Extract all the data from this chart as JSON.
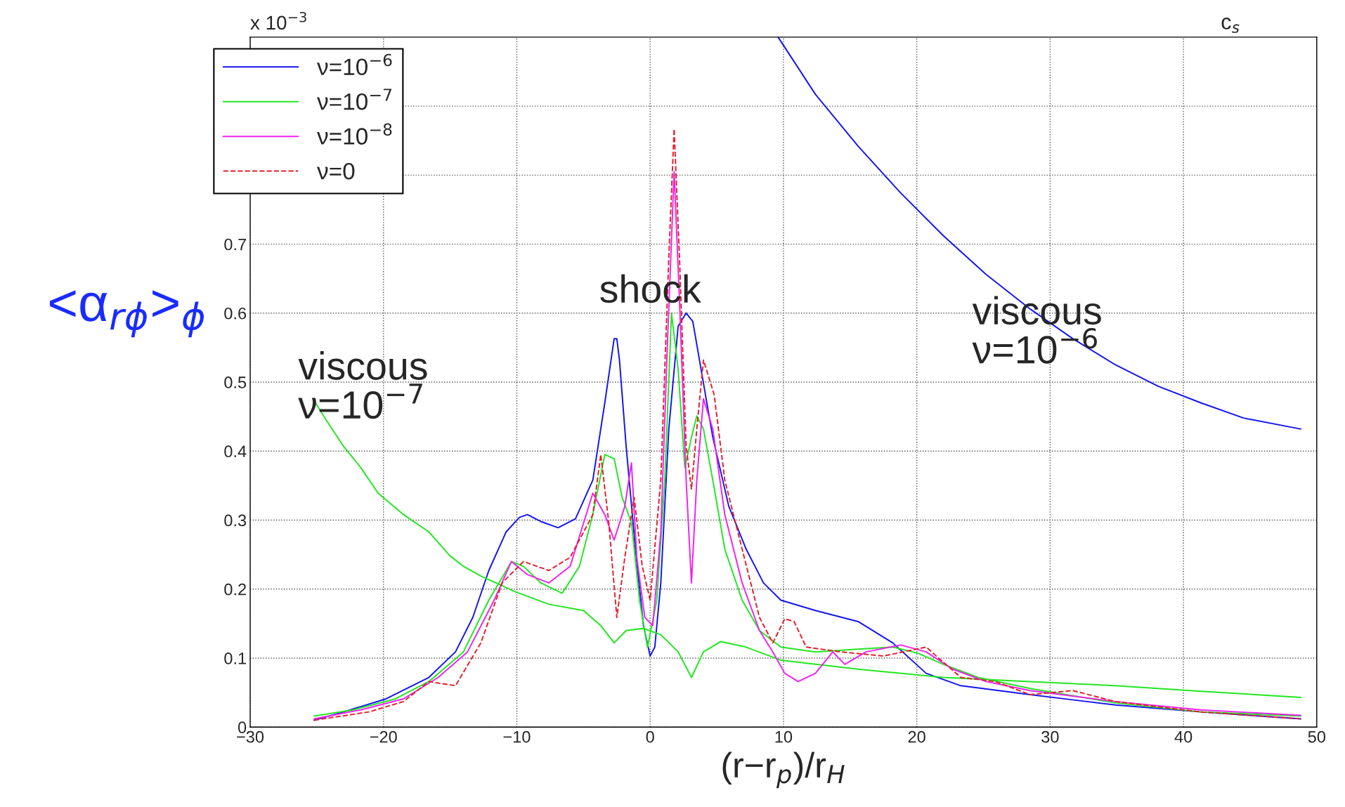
{
  "chart_data": {
    "type": "line",
    "xlabel": "(r−r$_{p}$)/r$_{H}$",
    "ylabel": "<α$_{rϕ}$>$_{ϕ}$",
    "xlim": [
      -30,
      50
    ],
    "xticks": [
      {
        "value": -30,
        "label": "−30"
      },
      {
        "value": -20,
        "label": "−20"
      },
      {
        "value": -10,
        "label": "−10"
      },
      0,
      10,
      20,
      30,
      40,
      50
    ],
    "ylim": [
      0,
      1.0
    ],
    "yticks": [
      0,
      0.1,
      0.2,
      0.3,
      0.4,
      0.5,
      0.6,
      0.7,
      {
        "value": 0.8,
        "label": null
      },
      {
        "value": 0.9,
        "label": null
      }
    ],
    "grid": true,
    "legend": "top left",
    "annotations": [
      "x 10$^{−3}$",
      "c$_{s}$",
      "shock",
      "viscous\nν=10$^{−7}$",
      "viscous\nν=10$^{−6}$"
    ],
    "series": [
      {
        "name": "ν=10$^{−6}$",
        "color": "#1414ee",
        "line_style": "solid",
        "x": [
          -25.2,
          -23.0,
          -19.8,
          -16.6,
          -14.6,
          -13.3,
          -12.1,
          -10.8,
          -9.8,
          -9.2,
          -8.2,
          -6.9,
          -5.6,
          -4.3,
          -3.4,
          -2.7,
          -2.5,
          -2.3,
          -1.8,
          -1.1,
          -0.5,
          0.0,
          0.35,
          0.8,
          1.4,
          2.1,
          2.7,
          3.2,
          3.7,
          4.7,
          5.9,
          7.2,
          8.5,
          9.8,
          12.4,
          15.6,
          18.2,
          20.7,
          23.3,
          28.5,
          34.9,
          41.3,
          48.8
        ],
        "values": [
          0.01,
          0.022,
          0.041,
          0.072,
          0.109,
          0.159,
          0.227,
          0.283,
          0.304,
          0.308,
          0.298,
          0.289,
          0.302,
          0.358,
          0.47,
          0.563,
          0.563,
          0.532,
          0.407,
          0.258,
          0.147,
          0.103,
          0.116,
          0.209,
          0.432,
          0.581,
          0.6,
          0.588,
          0.532,
          0.42,
          0.32,
          0.258,
          0.209,
          0.184,
          0.169,
          0.153,
          0.122,
          0.078,
          0.06,
          0.047,
          0.032,
          0.022,
          0.012
        ]
      },
      {
        "color": "#1414ee",
        "line_style": "solid",
        "x": [
          9.6,
          12.4,
          15.6,
          18.8,
          22.0,
          25.2,
          28.5,
          31.7,
          34.9,
          38.1,
          41.3,
          44.5,
          48.8
        ],
        "values": [
          1.0,
          0.917,
          0.842,
          0.774,
          0.712,
          0.656,
          0.606,
          0.563,
          0.525,
          0.494,
          0.47,
          0.448,
          0.432
        ]
      },
      {
        "name": "ν=10$^{−7}$",
        "color": "#22e622",
        "line_style": "solid",
        "x": [
          -25.2,
          -22.3,
          -19.1,
          -16.6,
          -14.0,
          -12.1,
          -10.4,
          -9.5,
          -8.2,
          -6.6,
          -5.3,
          -4.3,
          -3.4,
          -2.7,
          -2.1,
          -1.4,
          -0.8,
          -0.2,
          0.5,
          1.1,
          1.6,
          2.1,
          2.6,
          3.1,
          3.5,
          4.0,
          4.7,
          5.6,
          6.9,
          8.2,
          9.8,
          12.4,
          15.6,
          18.2,
          20.1,
          22.0,
          24.6,
          28.5,
          34.9,
          41.3,
          48.8
        ],
        "values": [
          0.016,
          0.025,
          0.041,
          0.066,
          0.109,
          0.184,
          0.24,
          0.233,
          0.209,
          0.194,
          0.233,
          0.308,
          0.395,
          0.389,
          0.333,
          0.296,
          0.184,
          0.116,
          0.184,
          0.358,
          0.6,
          0.519,
          0.376,
          0.42,
          0.451,
          0.432,
          0.358,
          0.258,
          0.184,
          0.14,
          0.116,
          0.109,
          0.113,
          0.116,
          0.107,
          0.091,
          0.072,
          0.056,
          0.035,
          0.022,
          0.016
        ]
      },
      {
        "color": "#22e622",
        "line_style": "solid",
        "x": [
          -25.2,
          -24.3,
          -23.0,
          -21.7,
          -20.4,
          -18.5,
          -16.6,
          -15.0,
          -14.0,
          -12.7,
          -10.1,
          -7.6,
          -5.0,
          -3.7,
          -2.7,
          -1.8,
          -0.5,
          0.8,
          2.1,
          3.1,
          4.0,
          5.3,
          7.2,
          9.8,
          15.6,
          22.0,
          28.5,
          34.9,
          41.3,
          48.8
        ],
        "values": [
          0.473,
          0.445,
          0.407,
          0.376,
          0.339,
          0.308,
          0.283,
          0.248,
          0.233,
          0.219,
          0.196,
          0.178,
          0.169,
          0.147,
          0.122,
          0.14,
          0.143,
          0.134,
          0.109,
          0.072,
          0.109,
          0.124,
          0.116,
          0.097,
          0.084,
          0.072,
          0.066,
          0.06,
          0.052,
          0.043
        ]
      },
      {
        "name": "ν=10$^{−8}$",
        "color": "#ee22ee",
        "line_style": "solid",
        "x": [
          -25.2,
          -21.7,
          -18.5,
          -15.9,
          -13.7,
          -11.7,
          -10.4,
          -9.2,
          -7.6,
          -6.0,
          -4.3,
          -3.4,
          -2.7,
          -1.9,
          -1.4,
          -1.0,
          -0.4,
          0.2,
          0.8,
          1.3,
          1.8,
          2.2,
          2.7,
          3.1,
          3.5,
          4.0,
          4.7,
          5.6,
          6.9,
          8.2,
          9.2,
          10.1,
          11.1,
          12.4,
          13.7,
          14.6,
          16.2,
          18.8,
          20.7,
          22.7,
          25.2,
          28.5,
          34.9,
          41.3,
          48.8
        ],
        "values": [
          0.012,
          0.025,
          0.041,
          0.072,
          0.109,
          0.184,
          0.24,
          0.221,
          0.209,
          0.233,
          0.339,
          0.308,
          0.271,
          0.32,
          0.383,
          0.246,
          0.159,
          0.147,
          0.283,
          0.557,
          0.805,
          0.619,
          0.358,
          0.209,
          0.358,
          0.476,
          0.432,
          0.308,
          0.209,
          0.14,
          0.109,
          0.078,
          0.066,
          0.078,
          0.109,
          0.091,
          0.109,
          0.119,
          0.109,
          0.084,
          0.066,
          0.053,
          0.037,
          0.025,
          0.017
        ]
      },
      {
        "name": "ν=0",
        "color": "#e2202c",
        "line_style": "dashed",
        "x": [
          -25.2,
          -21.1,
          -18.5,
          -16.6,
          -14.6,
          -12.7,
          -11.1,
          -9.5,
          -7.6,
          -6.0,
          -4.3,
          -3.7,
          -3.1,
          -2.5,
          -1.9,
          -1.2,
          -0.6,
          0.0,
          0.8,
          1.4,
          1.8,
          2.2,
          2.7,
          3.1,
          3.5,
          4.0,
          4.8,
          5.6,
          6.9,
          8.2,
          9.2,
          10.1,
          10.8,
          11.7,
          14.3,
          17.5,
          20.7,
          23.3,
          25.9,
          28.5,
          31.7,
          34.9,
          41.3,
          48.8
        ],
        "values": [
          0.01,
          0.022,
          0.037,
          0.066,
          0.06,
          0.122,
          0.209,
          0.24,
          0.227,
          0.246,
          0.308,
          0.395,
          0.296,
          0.159,
          0.246,
          0.333,
          0.234,
          0.184,
          0.358,
          0.681,
          0.867,
          0.681,
          0.407,
          0.345,
          0.432,
          0.532,
          0.482,
          0.358,
          0.258,
          0.159,
          0.122,
          0.157,
          0.153,
          0.116,
          0.109,
          0.103,
          0.116,
          0.072,
          0.066,
          0.047,
          0.053,
          0.037,
          0.022,
          0.012
        ]
      }
    ]
  }
}
